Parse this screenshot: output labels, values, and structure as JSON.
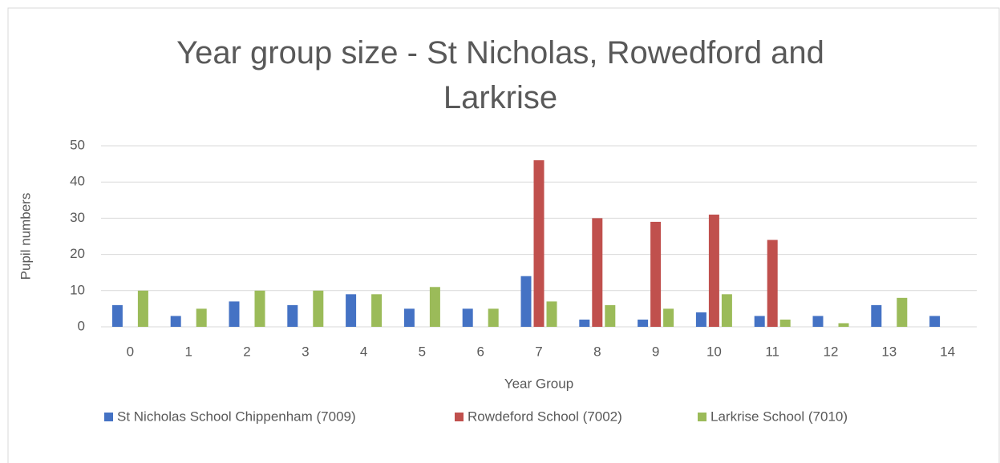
{
  "chart_data": {
    "type": "bar",
    "title": "Year group size - St Nicholas, Rowedford and Larkrise",
    "x_label": "Year Group",
    "y_label": "Pupil numbers",
    "categories": [
      "0",
      "1",
      "2",
      "3",
      "4",
      "5",
      "6",
      "7",
      "8",
      "9",
      "10",
      "11",
      "12",
      "13",
      "14"
    ],
    "series": [
      {
        "name": "St Nicholas School Chippenham (7009)",
        "color": "#4472c4",
        "values": [
          6,
          3,
          7,
          6,
          9,
          5,
          5,
          14,
          2,
          2,
          4,
          3,
          3,
          6,
          3
        ]
      },
      {
        "name": "Rowdeford School (7002)",
        "color": "#c0504d",
        "values": [
          0,
          0,
          0,
          0,
          0,
          0,
          0,
          46,
          30,
          29,
          31,
          24,
          0,
          0,
          0
        ]
      },
      {
        "name": "Larkrise School (7010)",
        "color": "#9bbb59",
        "values": [
          10,
          5,
          10,
          10,
          9,
          11,
          5,
          7,
          6,
          5,
          9,
          2,
          1,
          8,
          0
        ]
      }
    ],
    "ylim": [
      0,
      50
    ],
    "yticks": [
      0,
      10,
      20,
      30,
      40,
      50
    ],
    "grid": true,
    "legend": "bottom"
  }
}
